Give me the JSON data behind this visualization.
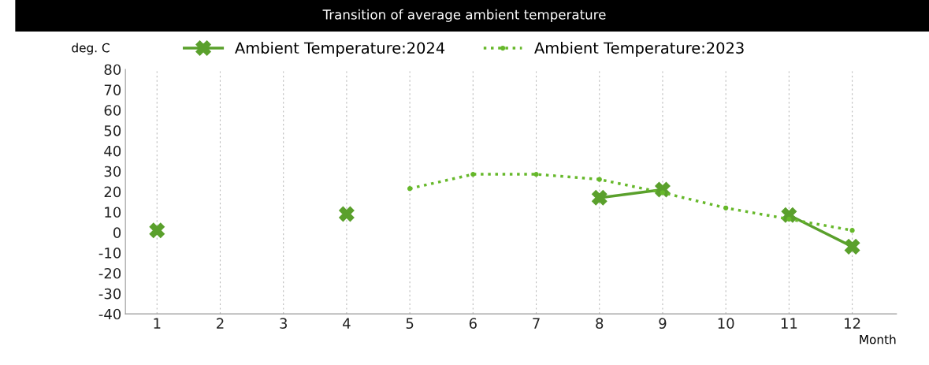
{
  "chart_data": {
    "type": "line",
    "title": "Transition of average ambient temperature",
    "xlabel": "Month",
    "ylabel": "deg. C",
    "categories": [
      "1",
      "2",
      "3",
      "4",
      "5",
      "6",
      "7",
      "8",
      "9",
      "10",
      "11",
      "12"
    ],
    "series": [
      {
        "name": "Ambient Temperature:2024",
        "color": "#5aa02c",
        "marker": "cross",
        "line_style": "solid",
        "values": [
          1,
          null,
          null,
          9,
          null,
          null,
          null,
          17,
          21,
          null,
          8.5,
          -7
        ]
      },
      {
        "name": "Ambient Temperature:2023",
        "color": "#66b82a",
        "marker": "circle",
        "line_style": "dotted",
        "values": [
          null,
          null,
          null,
          null,
          21.5,
          28.5,
          28.5,
          26,
          19.5,
          12,
          6.5,
          1
        ]
      }
    ],
    "ylim": [
      -40,
      80
    ],
    "yticks": [
      -40,
      -30,
      -20,
      -10,
      0,
      10,
      20,
      30,
      40,
      50,
      60,
      70,
      80
    ],
    "grid": "x",
    "legend": "top"
  }
}
